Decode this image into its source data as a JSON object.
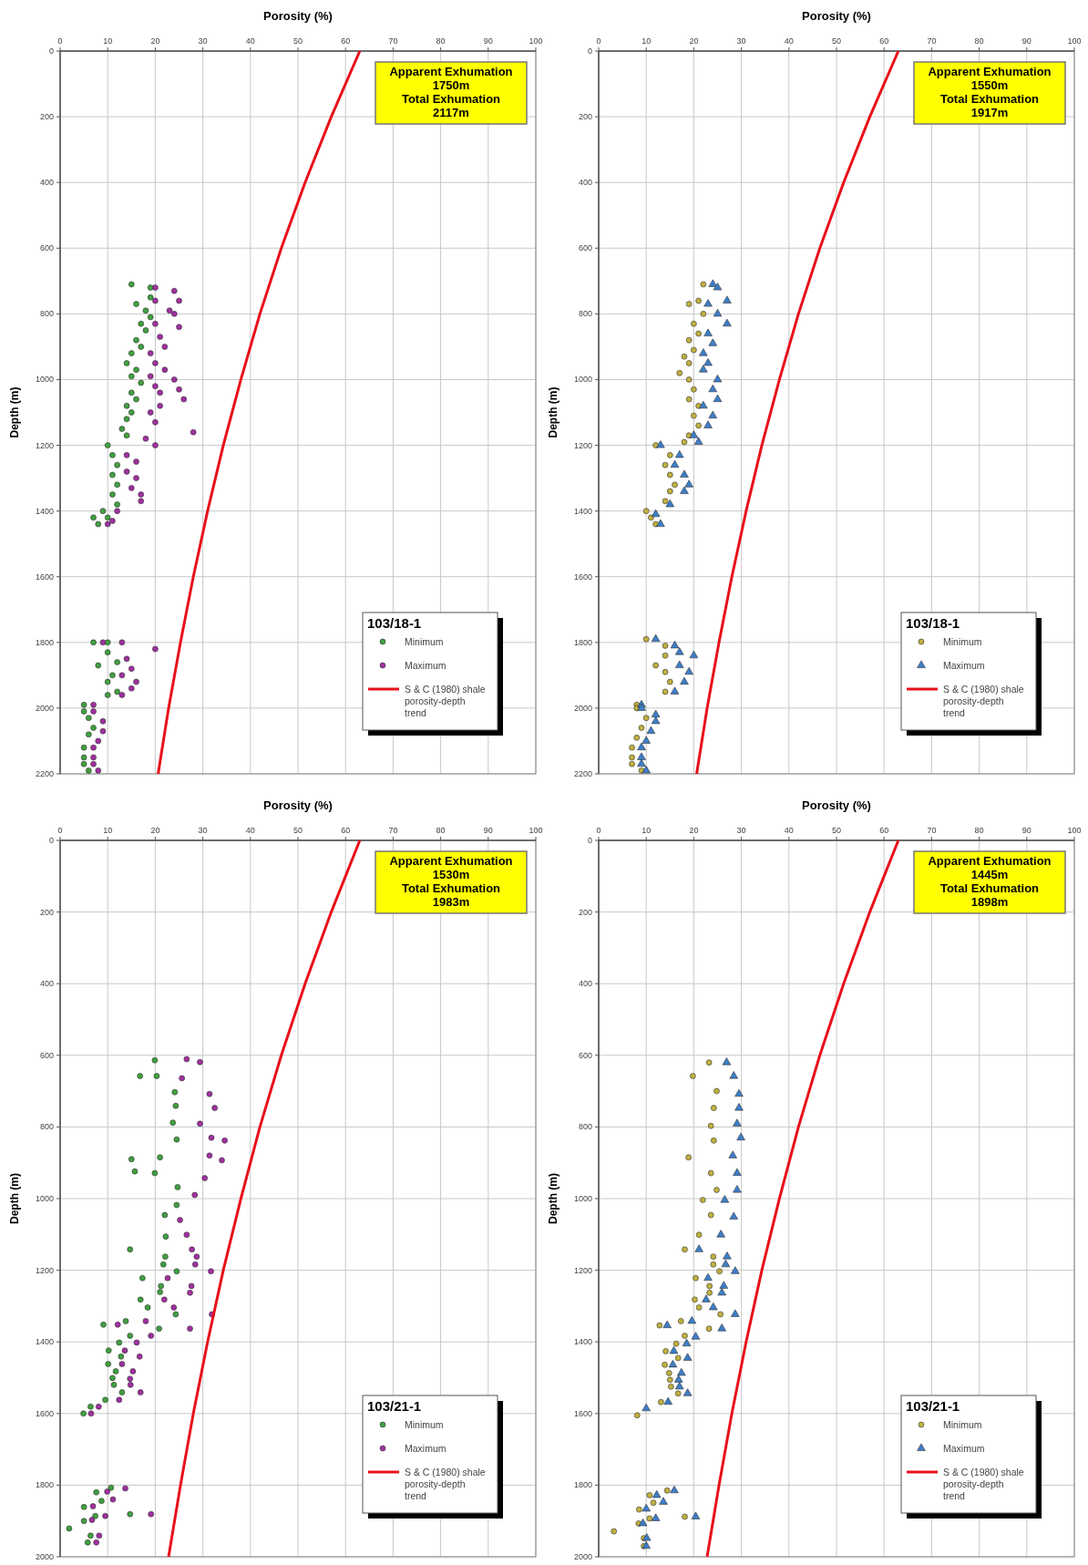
{
  "chart_data": [
    {
      "type": "scatter",
      "xlabel": "Porosity (%)",
      "ylabel": "Depth (m)",
      "xlim": [
        0,
        100
      ],
      "xticks": [
        0,
        10,
        20,
        30,
        40,
        50,
        60,
        70,
        80,
        90,
        100
      ],
      "ylim": [
        2200,
        0
      ],
      "yticks": [
        0,
        200,
        400,
        600,
        800,
        1000,
        1200,
        1400,
        1600,
        1800,
        2000,
        2200
      ],
      "grid": true,
      "legend": "bottom right",
      "legend_title": "103/18-1",
      "annotations": [
        "Apparent Exhumation\n1750m\nTotal Exhumation\n2117m"
      ],
      "series": [
        {
          "name": "Minimum",
          "color": "#40a040",
          "marker": "circle",
          "x": [
            15,
            19,
            19,
            16,
            18,
            19,
            17,
            18,
            16,
            17,
            15,
            14,
            16,
            15,
            17,
            15,
            16,
            14,
            15,
            14,
            13,
            14,
            10,
            11,
            12,
            11,
            12,
            11,
            12,
            9,
            10,
            7,
            8,
            7,
            10,
            10,
            12,
            8,
            11,
            10,
            12,
            10,
            5,
            5,
            6,
            7,
            6,
            5,
            5,
            5,
            6
          ],
          "values": [
            710,
            720,
            750,
            770,
            790,
            810,
            830,
            850,
            880,
            900,
            920,
            950,
            970,
            990,
            1010,
            1040,
            1060,
            1080,
            1100,
            1120,
            1150,
            1170,
            1200,
            1230,
            1260,
            1290,
            1320,
            1350,
            1380,
            1400,
            1420,
            1420,
            1440,
            1800,
            1800,
            1830,
            1860,
            1870,
            1900,
            1920,
            1950,
            1960,
            1990,
            2010,
            2030,
            2060,
            2080,
            2120,
            2150,
            2170,
            2190
          ]
        },
        {
          "name": "Maximum",
          "color": "#a030a0",
          "marker": "circle",
          "x": [
            20,
            24,
            20,
            25,
            23,
            24,
            20,
            25,
            21,
            22,
            19,
            20,
            22,
            19,
            24,
            20,
            25,
            21,
            26,
            21,
            19,
            20,
            28,
            18,
            20,
            14,
            16,
            14,
            16,
            15,
            17,
            17,
            12,
            11,
            10,
            9,
            13,
            20,
            14,
            15,
            13,
            16,
            15,
            13,
            7,
            7,
            9,
            9,
            8,
            7,
            7,
            7,
            8
          ],
          "values": [
            720,
            730,
            760,
            760,
            790,
            800,
            830,
            840,
            870,
            900,
            920,
            950,
            970,
            990,
            1000,
            1020,
            1030,
            1040,
            1060,
            1080,
            1100,
            1130,
            1160,
            1180,
            1200,
            1230,
            1250,
            1280,
            1300,
            1330,
            1350,
            1370,
            1400,
            1430,
            1440,
            1800,
            1800,
            1820,
            1850,
            1880,
            1900,
            1920,
            1940,
            1960,
            1990,
            2010,
            2040,
            2070,
            2100,
            2120,
            2150,
            2170,
            2190
          ]
        },
        {
          "name": "S & C (1980) shale porosity-depth trend",
          "type": "line",
          "color": "#e8101a",
          "marker": "none",
          "x": [
            63,
            57,
            51.5,
            46.5,
            42,
            38,
            34.3,
            31,
            28,
            25.3,
            22.8,
            20.6
          ],
          "values": [
            0,
            200,
            400,
            600,
            800,
            1000,
            1200,
            1400,
            1600,
            1800,
            2000,
            2200
          ]
        }
      ]
    },
    {
      "type": "scatter",
      "xlabel": "Porosity (%)",
      "ylabel": "Depth (m)",
      "xlim": [
        0,
        100
      ],
      "xticks": [
        0,
        10,
        20,
        30,
        40,
        50,
        60,
        70,
        80,
        90,
        100
      ],
      "ylim": [
        2200,
        0
      ],
      "yticks": [
        0,
        200,
        400,
        600,
        800,
        1000,
        1200,
        1400,
        1600,
        1800,
        2000,
        2200
      ],
      "grid": true,
      "legend": "bottom right",
      "legend_title": "103/18-1",
      "annotations": [
        "Apparent Exhumation\n1550m\nTotal Exhumation\n1917m"
      ],
      "series": [
        {
          "name": "Minimum",
          "color": "#c0b040",
          "marker": "circle",
          "x": [
            22,
            21,
            19,
            22,
            20,
            21,
            19,
            20,
            18,
            19,
            17,
            19,
            20,
            19,
            21,
            20,
            21,
            19,
            18,
            12,
            15,
            14,
            15,
            16,
            15,
            14,
            10,
            11,
            12,
            10,
            14,
            14,
            12,
            14,
            15,
            14,
            8,
            8,
            10,
            9,
            8,
            7,
            7,
            7,
            9
          ],
          "values": [
            710,
            760,
            770,
            800,
            830,
            860,
            880,
            910,
            930,
            950,
            980,
            1000,
            1030,
            1060,
            1080,
            1110,
            1140,
            1170,
            1190,
            1200,
            1230,
            1260,
            1290,
            1320,
            1340,
            1370,
            1400,
            1420,
            1440,
            1790,
            1810,
            1840,
            1870,
            1890,
            1920,
            1950,
            1990,
            2000,
            2030,
            2060,
            2090,
            2120,
            2150,
            2170,
            2190
          ]
        },
        {
          "name": "Maximum",
          "color": "#3d7ec8",
          "marker": "triangle",
          "x": [
            24,
            25,
            27,
            23,
            25,
            27,
            23,
            24,
            22,
            23,
            22,
            25,
            24,
            25,
            22,
            24,
            23,
            20,
            21,
            13,
            17,
            16,
            18,
            19,
            18,
            15,
            12,
            13,
            12,
            16,
            17,
            20,
            17,
            19,
            18,
            16,
            9,
            9,
            12,
            12,
            11,
            10,
            9,
            9,
            9,
            10
          ],
          "values": [
            710,
            720,
            760,
            770,
            800,
            830,
            860,
            890,
            920,
            950,
            970,
            1000,
            1030,
            1060,
            1080,
            1110,
            1140,
            1170,
            1190,
            1200,
            1230,
            1260,
            1290,
            1320,
            1340,
            1380,
            1410,
            1440,
            1790,
            1810,
            1830,
            1840,
            1870,
            1890,
            1920,
            1950,
            1990,
            2000,
            2020,
            2040,
            2070,
            2100,
            2120,
            2150,
            2170,
            2190
          ]
        },
        {
          "name": "S & C (1980) shale porosity-depth trend",
          "type": "line",
          "color": "#e8101a",
          "marker": "none",
          "x": [
            63,
            57,
            51.5,
            46.5,
            42,
            38,
            34.3,
            31,
            28,
            25.3,
            22.8,
            20.6
          ],
          "values": [
            0,
            200,
            400,
            600,
            800,
            1000,
            1200,
            1400,
            1600,
            1800,
            2000,
            2200
          ]
        }
      ]
    },
    {
      "type": "scatter",
      "xlabel": "Porosity (%)",
      "ylabel": "Depth (m)",
      "xlim": [
        0,
        100
      ],
      "xticks": [
        0,
        10,
        20,
        30,
        40,
        50,
        60,
        70,
        80,
        90,
        100
      ],
      "ylim": [
        2000,
        0
      ],
      "yticks": [
        0,
        200,
        400,
        600,
        800,
        1000,
        1200,
        1400,
        1600,
        1800,
        2000
      ],
      "grid": true,
      "legend": "bottom right",
      "legend_title": "103/21-1",
      "annotations": [
        "Apparent Exhumation\n1530m\nTotal Exhumation\n1983m"
      ],
      "series": [
        {
          "name": "Minimum",
          "color": "#40a040",
          "marker": "circle",
          "x": [
            19.9,
            20.3,
            16.8,
            24.1,
            24.3,
            23.7,
            24.5,
            15,
            15.7,
            21,
            19.9,
            24.7,
            24.5,
            22,
            22.2,
            14.7,
            22.1,
            21.7,
            24.5,
            17.3,
            21.2,
            21,
            16.9,
            18.4,
            24.3,
            9.1,
            13.8,
            20.8,
            14.7,
            12.4,
            10.2,
            12.8,
            10.1,
            11.7,
            11,
            11.3,
            13,
            9.5,
            4.9,
            6.4,
            7.6,
            10.7,
            5,
            8.7,
            5,
            7.4,
            14.7,
            1.9,
            6.4,
            5.8
          ],
          "values": [
            614,
            658,
            658,
            703,
            741,
            788,
            835,
            890,
            924,
            885,
            929,
            968,
            1018,
            1046,
            1106,
            1142,
            1162,
            1184,
            1203,
            1222,
            1244,
            1261,
            1282,
            1304,
            1323,
            1352,
            1342,
            1363,
            1383,
            1402,
            1424,
            1441,
            1462,
            1482,
            1501,
            1520,
            1541,
            1562,
            1600,
            1581,
            1820,
            1807,
            1861,
            1844,
            1900,
            1886,
            1881,
            1921,
            1941,
            1960
          ]
        },
        {
          "name": "Maximum",
          "color": "#a030a0",
          "marker": "circle",
          "x": [
            26.6,
            29.4,
            25.6,
            31.4,
            32.5,
            29.4,
            31.8,
            34.6,
            31.4,
            34,
            30.4,
            28.3,
            25.2,
            26.6,
            27.7,
            28.7,
            28.4,
            31.7,
            22.6,
            27.6,
            27.3,
            21.9,
            23.9,
            31.9,
            12.1,
            18,
            27.3,
            19.1,
            16.1,
            13.6,
            16.7,
            13,
            15.3,
            14.7,
            14.8,
            16.9,
            12.4,
            6.5,
            8.1,
            9.9,
            13.7,
            6.9,
            11.1,
            6.7,
            9.5,
            19.1,
            8.2,
            7.6
          ],
          "values": [
            611,
            619,
            664,
            708,
            747,
            791,
            830,
            838,
            880,
            893,
            943,
            990,
            1060,
            1101,
            1142,
            1162,
            1184,
            1203,
            1222,
            1244,
            1263,
            1282,
            1304,
            1323,
            1352,
            1342,
            1363,
            1383,
            1402,
            1424,
            1441,
            1462,
            1482,
            1503,
            1520,
            1541,
            1562,
            1600,
            1581,
            1818,
            1809,
            1859,
            1840,
            1897,
            1886,
            1881,
            1941,
            1960
          ]
        },
        {
          "name": "S & C (1980) shale porosity-depth trend",
          "type": "line",
          "color": "#e8101a",
          "marker": "none",
          "x": [
            63,
            57,
            51.5,
            46.5,
            42,
            38,
            34.3,
            31,
            28,
            25.3,
            22.8
          ],
          "values": [
            0,
            200,
            400,
            600,
            800,
            1000,
            1200,
            1400,
            1600,
            1800,
            2000
          ]
        }
      ]
    },
    {
      "type": "scatter",
      "xlabel": "Porosity (%)",
      "ylabel": "Depth (m)",
      "xlim": [
        0,
        100
      ],
      "xticks": [
        0,
        10,
        20,
        30,
        40,
        50,
        60,
        70,
        80,
        90,
        100
      ],
      "ylim": [
        2000,
        0
      ],
      "yticks": [
        0,
        200,
        400,
        600,
        800,
        1000,
        1200,
        1400,
        1600,
        1800,
        2000
      ],
      "grid": true,
      "legend": "bottom right",
      "legend_title": "103/21-1",
      "annotations": [
        "Apparent Exhumation\n1445m\nTotal Exhumation\n1898m"
      ],
      "series": [
        {
          "name": "Minimum",
          "color": "#c0b040",
          "marker": "circle",
          "x": [
            23.2,
            19.8,
            24.8,
            24.2,
            23.6,
            24.2,
            18.9,
            23.6,
            24.8,
            21.9,
            23.6,
            21.1,
            18.1,
            20.4,
            24.1,
            24.1,
            25.4,
            23.3,
            23.3,
            20.2,
            21.1,
            25.6,
            12.8,
            17.3,
            23.2,
            18.1,
            16.3,
            14.1,
            16.7,
            13.9,
            14.8,
            15,
            15.2,
            16.7,
            13.1,
            8.1,
            14.4,
            10.7,
            11.5,
            8.5,
            10.7,
            18.1,
            8.4,
            3.2,
            9.5,
            9.5
          ],
          "values": [
            620,
            658,
            700,
            747,
            797,
            838,
            885,
            929,
            976,
            1004,
            1046,
            1101,
            1142,
            1222,
            1162,
            1184,
            1203,
            1244,
            1263,
            1282,
            1304,
            1323,
            1354,
            1342,
            1363,
            1383,
            1405,
            1426,
            1445,
            1464,
            1487,
            1506,
            1525,
            1544,
            1568,
            1605,
            1815,
            1828,
            1849,
            1868,
            1893,
            1888,
            1907,
            1929,
            1948,
            1970
          ]
        },
        {
          "name": "Maximum",
          "color": "#3d7ec8",
          "marker": "triangle",
          "x": [
            26.9,
            28.4,
            29.5,
            29.5,
            29.1,
            29.9,
            28.2,
            29.1,
            29.1,
            26.5,
            28.4,
            25.7,
            21.1,
            23,
            27,
            26.7,
            28.7,
            26.3,
            25.9,
            22.6,
            24.1,
            28.7,
            14.4,
            19.6,
            25.9,
            20.4,
            18.5,
            15.8,
            18.7,
            15.6,
            17.4,
            16.8,
            17,
            18.7,
            14.6,
            10,
            15.9,
            12.2,
            13.6,
            10,
            12,
            20.4,
            9.3,
            10.1,
            10
          ],
          "values": [
            620,
            658,
            708,
            747,
            791,
            830,
            880,
            929,
            976,
            1004,
            1051,
            1101,
            1142,
            1222,
            1162,
            1184,
            1203,
            1244,
            1263,
            1282,
            1304,
            1323,
            1354,
            1342,
            1363,
            1386,
            1405,
            1426,
            1445,
            1464,
            1487,
            1506,
            1525,
            1544,
            1568,
            1586,
            1815,
            1828,
            1847,
            1866,
            1893,
            1888,
            1907,
            1948,
            1970
          ]
        },
        {
          "name": "S & C (1980) shale porosity-depth trend",
          "type": "line",
          "color": "#e8101a",
          "marker": "none",
          "x": [
            63,
            57,
            51.5,
            46.5,
            42,
            38,
            34.3,
            31,
            28,
            25.3,
            22.8
          ],
          "values": [
            0,
            200,
            400,
            600,
            800,
            1000,
            1200,
            1400,
            1600,
            1800,
            2000
          ]
        }
      ]
    }
  ]
}
